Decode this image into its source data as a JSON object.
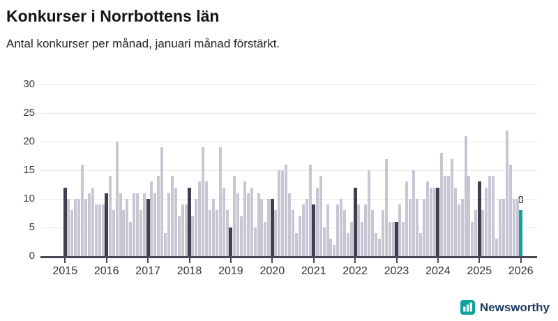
{
  "header": {
    "title": "Konkurser i Norrbottens län",
    "subtitle": "Antal konkurser per månad, januari månad förstärkt."
  },
  "chart_data": {
    "type": "bar",
    "title": "Konkurser i Norrbottens län",
    "subtitle": "Antal konkurser per månad, januari månad förstärkt.",
    "xlabel": "",
    "ylabel": "",
    "ylim": [
      0,
      30
    ],
    "y_ticks": [
      0,
      5,
      10,
      15,
      20,
      25,
      30
    ],
    "grid": "horizontal",
    "years": [
      2015,
      2016,
      2017,
      2018,
      2019,
      2020,
      2021,
      2022,
      2023,
      2024,
      2025,
      2026
    ],
    "month_start": "2015-01",
    "month_end": "2026-01",
    "monthly_values": {
      "2015": [
        12,
        10,
        8,
        10,
        10,
        16,
        10,
        11,
        12,
        9,
        9,
        9
      ],
      "2016": [
        11,
        14,
        8,
        20,
        11,
        8,
        10,
        6,
        11,
        11,
        8,
        11
      ],
      "2017": [
        10,
        13,
        11,
        14,
        19,
        4,
        11,
        14,
        12,
        7,
        9,
        9
      ],
      "2018": [
        12,
        7,
        10,
        13,
        19,
        13,
        8,
        10,
        8,
        19,
        12,
        8
      ],
      "2019": [
        5,
        14,
        11,
        7,
        13,
        11,
        12,
        5,
        11,
        10,
        6,
        10
      ],
      "2020": [
        10,
        8,
        15,
        15,
        16,
        11,
        8,
        4,
        7,
        9,
        10,
        16
      ],
      "2021": [
        9,
        12,
        14,
        5,
        9,
        3,
        2,
        9,
        10,
        8,
        4,
        6
      ],
      "2022": [
        12,
        9,
        6,
        9,
        15,
        8,
        4,
        3,
        8,
        17,
        6,
        6
      ],
      "2023": [
        6,
        9,
        6,
        13,
        10,
        15,
        10,
        4,
        10,
        13,
        12,
        12
      ],
      "2024": [
        12,
        18,
        14,
        14,
        17,
        12,
        9,
        10,
        21,
        14,
        6,
        8
      ],
      "2025": [
        13,
        8,
        12,
        14,
        14,
        3,
        10,
        10,
        22,
        16,
        10,
        10
      ],
      "2026": [
        8
      ]
    },
    "emphasis": "january",
    "annotation": {
      "text": "8",
      "month": "2026-01"
    },
    "colors": {
      "bar": "#c9c6d4",
      "january": "#413e50",
      "latest": "#0ba39b"
    }
  },
  "footer": {
    "brand": "Newsworthy"
  }
}
